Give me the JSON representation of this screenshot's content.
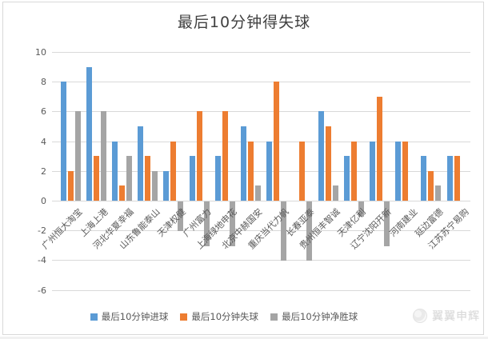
{
  "watermark": {
    "text": "翼翼申辉"
  },
  "chart_data": {
    "type": "bar",
    "title": "最后10分钟得失球",
    "categories": [
      "广州恒大淘宝",
      "上海上港",
      "河北华夏幸福",
      "山东鲁能泰山",
      "天津权健",
      "广州富力",
      "上海绿地申花",
      "北京中赫国安",
      "重庆当代力帆",
      "长春亚泰",
      "贵州恒丰智诚",
      "天津亿利",
      "辽宁沈阳开新",
      "河南建业",
      "延边富德",
      "江苏苏宁易购"
    ],
    "series": [
      {
        "name": "最后10分钟进球",
        "color": "#5B9BD5",
        "values": [
          8,
          9,
          4,
          5,
          2,
          3,
          3,
          5,
          4,
          0,
          6,
          3,
          4,
          4,
          3,
          3
        ]
      },
      {
        "name": "最后10分钟失球",
        "color": "#ED7D31",
        "values": [
          2,
          3,
          1,
          3,
          4,
          6,
          6,
          4,
          8,
          4,
          5,
          4,
          7,
          4,
          2,
          3
        ]
      },
      {
        "name": "最后10分钟净胜球",
        "color": "#A5A5A5",
        "values": [
          6,
          6,
          3,
          2,
          -2,
          -3,
          -3,
          1,
          -4,
          -4,
          1,
          -1,
          -3,
          0,
          1,
          0
        ]
      }
    ],
    "xlabel": "",
    "ylabel": "",
    "ylim": [
      -6,
      10
    ],
    "yticks": [
      10,
      8,
      6,
      4,
      2,
      0,
      -2,
      -4,
      -6
    ],
    "grid": true,
    "gridline_color": "#d9d9d9",
    "text_color": "#595959",
    "legend_position": "bottom"
  }
}
